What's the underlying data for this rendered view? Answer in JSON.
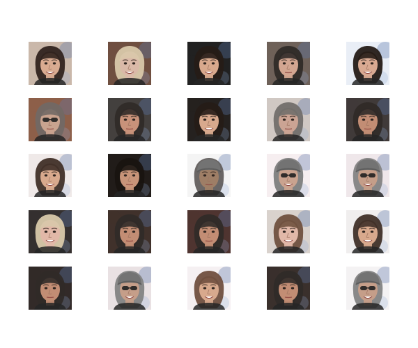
{
  "grid": {
    "rows": 5,
    "cols": 5
  },
  "tiles": [
    {
      "subject": "woman-dark-hair",
      "bg": "#c9b6a8",
      "hair": "#2b1d17",
      "skin": "#d8a98e",
      "hat": false,
      "glasses": false,
      "smile": true
    },
    {
      "subject": "woman-blonde-hair",
      "bg": "#6b4a3a",
      "hair": "#d8c7a8",
      "skin": "#d9b7a6",
      "hat": false,
      "glasses": false,
      "smile": true
    },
    {
      "subject": "woman-dark-hair",
      "bg": "#1a1a1a",
      "hair": "#1f1510",
      "skin": "#d7a78a",
      "hat": false,
      "glasses": false,
      "smile": true
    },
    {
      "subject": "man-dark-hair",
      "bg": "#6a5c54",
      "hair": "#2a2522",
      "skin": "#d2a48e",
      "hat": false,
      "glasses": false,
      "smile": false
    },
    {
      "subject": "woman-dark-hair",
      "bg": "#e9eef6",
      "hair": "#1f1510",
      "skin": "#d8a88f",
      "hat": false,
      "glasses": false,
      "smile": true
    },
    {
      "subject": "man-blurry",
      "bg": "#8a5a44",
      "hair": "#6e6560",
      "skin": "#c8a08c",
      "hat": false,
      "glasses": true,
      "smile": false
    },
    {
      "subject": "man-dark-hair",
      "bg": "#3e3a38",
      "hair": "#2a2522",
      "skin": "#c78f76",
      "hat": false,
      "glasses": false,
      "smile": false
    },
    {
      "subject": "woman-dark-hair",
      "bg": "#1e1a18",
      "hair": "#1f1510",
      "skin": "#d7a78a",
      "hat": false,
      "glasses": false,
      "smile": true
    },
    {
      "subject": "man-blurry",
      "bg": "#cfc7c2",
      "hair": "#6e6a67",
      "skin": "#caa291",
      "hat": false,
      "glasses": false,
      "smile": false
    },
    {
      "subject": "man-dark-hair",
      "bg": "#3a3433",
      "hair": "#2a2522",
      "skin": "#c08a70",
      "hat": false,
      "glasses": false,
      "smile": false
    },
    {
      "subject": "woman-dark-hair",
      "bg": "#efe9e8",
      "hair": "#3b2a22",
      "skin": "#d7a78a",
      "hat": false,
      "glasses": false,
      "smile": true
    },
    {
      "subject": "man-dark-hair",
      "bg": "#1a1512",
      "hair": "#120d0a",
      "skin": "#c79175",
      "hat": false,
      "glasses": false,
      "smile": false
    },
    {
      "subject": "man-hood-beard",
      "bg": "#f4f4f4",
      "hair": "#5e5a58",
      "skin": "#9b7a62",
      "hat": true,
      "glasses": false,
      "smile": false
    },
    {
      "subject": "man-cap-sunglasses",
      "bg": "#f6eef0",
      "hair": "#7a7a7a",
      "skin": "#c9a08c",
      "hat": true,
      "glasses": true,
      "smile": true
    },
    {
      "subject": "man-cap-sunglasses",
      "bg": "#efe7ea",
      "hair": "#7f7f7f",
      "skin": "#c49b86",
      "hat": true,
      "glasses": true,
      "smile": true
    },
    {
      "subject": "woman-blonde-hair",
      "bg": "#2f2a29",
      "hair": "#d8c7a8",
      "skin": "#e0b6a6",
      "hat": false,
      "glasses": false,
      "smile": true
    },
    {
      "subject": "man-dark-hair",
      "bg": "#3a2b25",
      "hair": "#2a2522",
      "skin": "#c08a70",
      "hat": false,
      "glasses": false,
      "smile": false
    },
    {
      "subject": "man-dark-hair",
      "bg": "#4a2e2a",
      "hair": "#2a2522",
      "skin": "#c08a70",
      "hat": false,
      "glasses": false,
      "smile": false
    },
    {
      "subject": "woman-blonde-hair",
      "bg": "#d8d1cc",
      "hair": "#6b4c3a",
      "skin": "#e0b6a6",
      "hat": false,
      "glasses": false,
      "smile": true
    },
    {
      "subject": "woman-dark-hair",
      "bg": "#f0eeee",
      "hair": "#3b2a22",
      "skin": "#d7a78a",
      "hat": false,
      "glasses": false,
      "smile": true
    },
    {
      "subject": "man-dark-hair",
      "bg": "#2c2422",
      "hair": "#2a2522",
      "skin": "#c08a70",
      "hat": false,
      "glasses": false,
      "smile": false
    },
    {
      "subject": "man-cap-sunglasses",
      "bg": "#e9e1e3",
      "hair": "#7f7f7f",
      "skin": "#c49b86",
      "hat": true,
      "glasses": true,
      "smile": true
    },
    {
      "subject": "woman-dark-hair",
      "bg": "#f5f0f2",
      "hair": "#6b4a3a",
      "skin": "#d7a78a",
      "hat": false,
      "glasses": false,
      "smile": true
    },
    {
      "subject": "man-dark-hair",
      "bg": "#342a26",
      "hair": "#2a2522",
      "skin": "#c08a70",
      "hat": false,
      "glasses": false,
      "smile": false
    },
    {
      "subject": "man-cap-sunglasses",
      "bg": "#f4f2f3",
      "hair": "#7f7f7f",
      "skin": "#c49b86",
      "hat": true,
      "glasses": true,
      "smile": true
    }
  ]
}
